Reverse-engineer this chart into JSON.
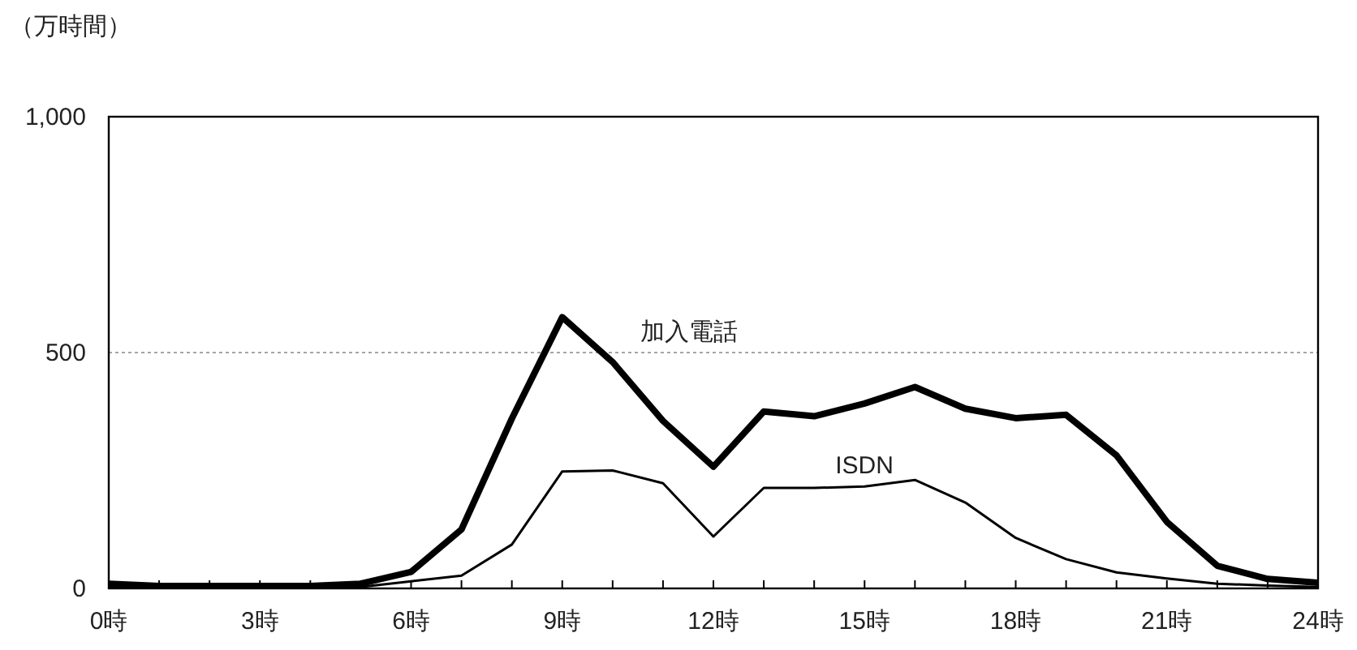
{
  "chart_data": {
    "type": "line",
    "ylabel": "（万時間）",
    "x": [
      0,
      1,
      2,
      3,
      4,
      5,
      6,
      7,
      8,
      9,
      10,
      11,
      12,
      13,
      14,
      15,
      16,
      17,
      18,
      19,
      20,
      21,
      22,
      23,
      24
    ],
    "xlim": [
      0,
      24
    ],
    "xticks": [
      {
        "value": 0,
        "label": "0時"
      },
      {
        "value": 1,
        "label": null
      },
      {
        "value": 2,
        "label": null
      },
      {
        "value": 3,
        "label": "3時"
      },
      {
        "value": 4,
        "label": null
      },
      {
        "value": 5,
        "label": null
      },
      {
        "value": 6,
        "label": "6時"
      },
      {
        "value": 7,
        "label": null
      },
      {
        "value": 8,
        "label": null
      },
      {
        "value": 9,
        "label": "9時"
      },
      {
        "value": 10,
        "label": null
      },
      {
        "value": 11,
        "label": null
      },
      {
        "value": 12,
        "label": "12時"
      },
      {
        "value": 13,
        "label": null
      },
      {
        "value": 14,
        "label": null
      },
      {
        "value": 15,
        "label": "15時"
      },
      {
        "value": 16,
        "label": null
      },
      {
        "value": 17,
        "label": null
      },
      {
        "value": 18,
        "label": "18時"
      },
      {
        "value": 19,
        "label": null
      },
      {
        "value": 20,
        "label": null
      },
      {
        "value": 21,
        "label": "21時"
      },
      {
        "value": 22,
        "label": null
      },
      {
        "value": 23,
        "label": null
      },
      {
        "value": 24,
        "label": "24時"
      }
    ],
    "ylim": [
      0,
      1000
    ],
    "yticks": [
      0,
      500,
      {
        "value": 1000,
        "label": "1,000"
      }
    ],
    "grid": "y",
    "marker": "none",
    "series": [
      {
        "name": "加入電話",
        "color": "#000000",
        "values": [
          10,
          5,
          5,
          5,
          5,
          10,
          35,
          125,
          360,
          575,
          480,
          355,
          258,
          375,
          365,
          392,
          427,
          381,
          361,
          368,
          282,
          141,
          48,
          20,
          12
        ]
      },
      {
        "name": "ISDN",
        "color": "#000000",
        "values": [
          3,
          3,
          3,
          3,
          3,
          3,
          15,
          27,
          93,
          248,
          250,
          223,
          110,
          213,
          213,
          216,
          230,
          182,
          107,
          62,
          34,
          21,
          10,
          6,
          3
        ]
      }
    ]
  }
}
